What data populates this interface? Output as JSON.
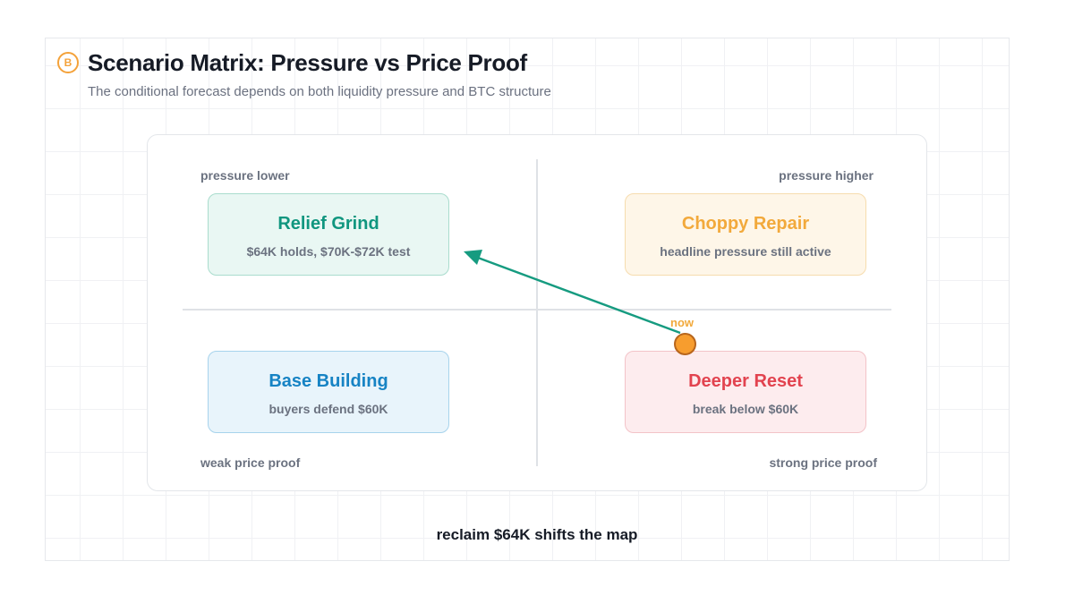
{
  "header": {
    "logo_glyph": "B",
    "title": "Scenario Matrix: Pressure vs Price Proof",
    "subtitle": "The conditional forecast depends on both liquidity pressure and BTC structure"
  },
  "axes": {
    "top_left": "pressure lower",
    "top_right": "pressure higher",
    "bottom_left": "weak price proof",
    "bottom_right": "strong price proof"
  },
  "quadrants": [
    {
      "title": "Relief Grind",
      "desc": "$64K holds, $70K-$72K test",
      "color": "#10967f"
    },
    {
      "title": "Choppy Repair",
      "desc": "headline pressure still active",
      "color": "#f2a93b"
    },
    {
      "title": "Base Building",
      "desc": "buyers defend $60K",
      "color": "#1683c4"
    },
    {
      "title": "Deeper Reset",
      "desc": "break below $60K",
      "color": "#e2434f"
    }
  ],
  "marker": {
    "label": "now",
    "color": "#f79d2e",
    "arrow_color": "#169b80"
  },
  "footer": {
    "text": "reclaim $64K shifts the map"
  }
}
